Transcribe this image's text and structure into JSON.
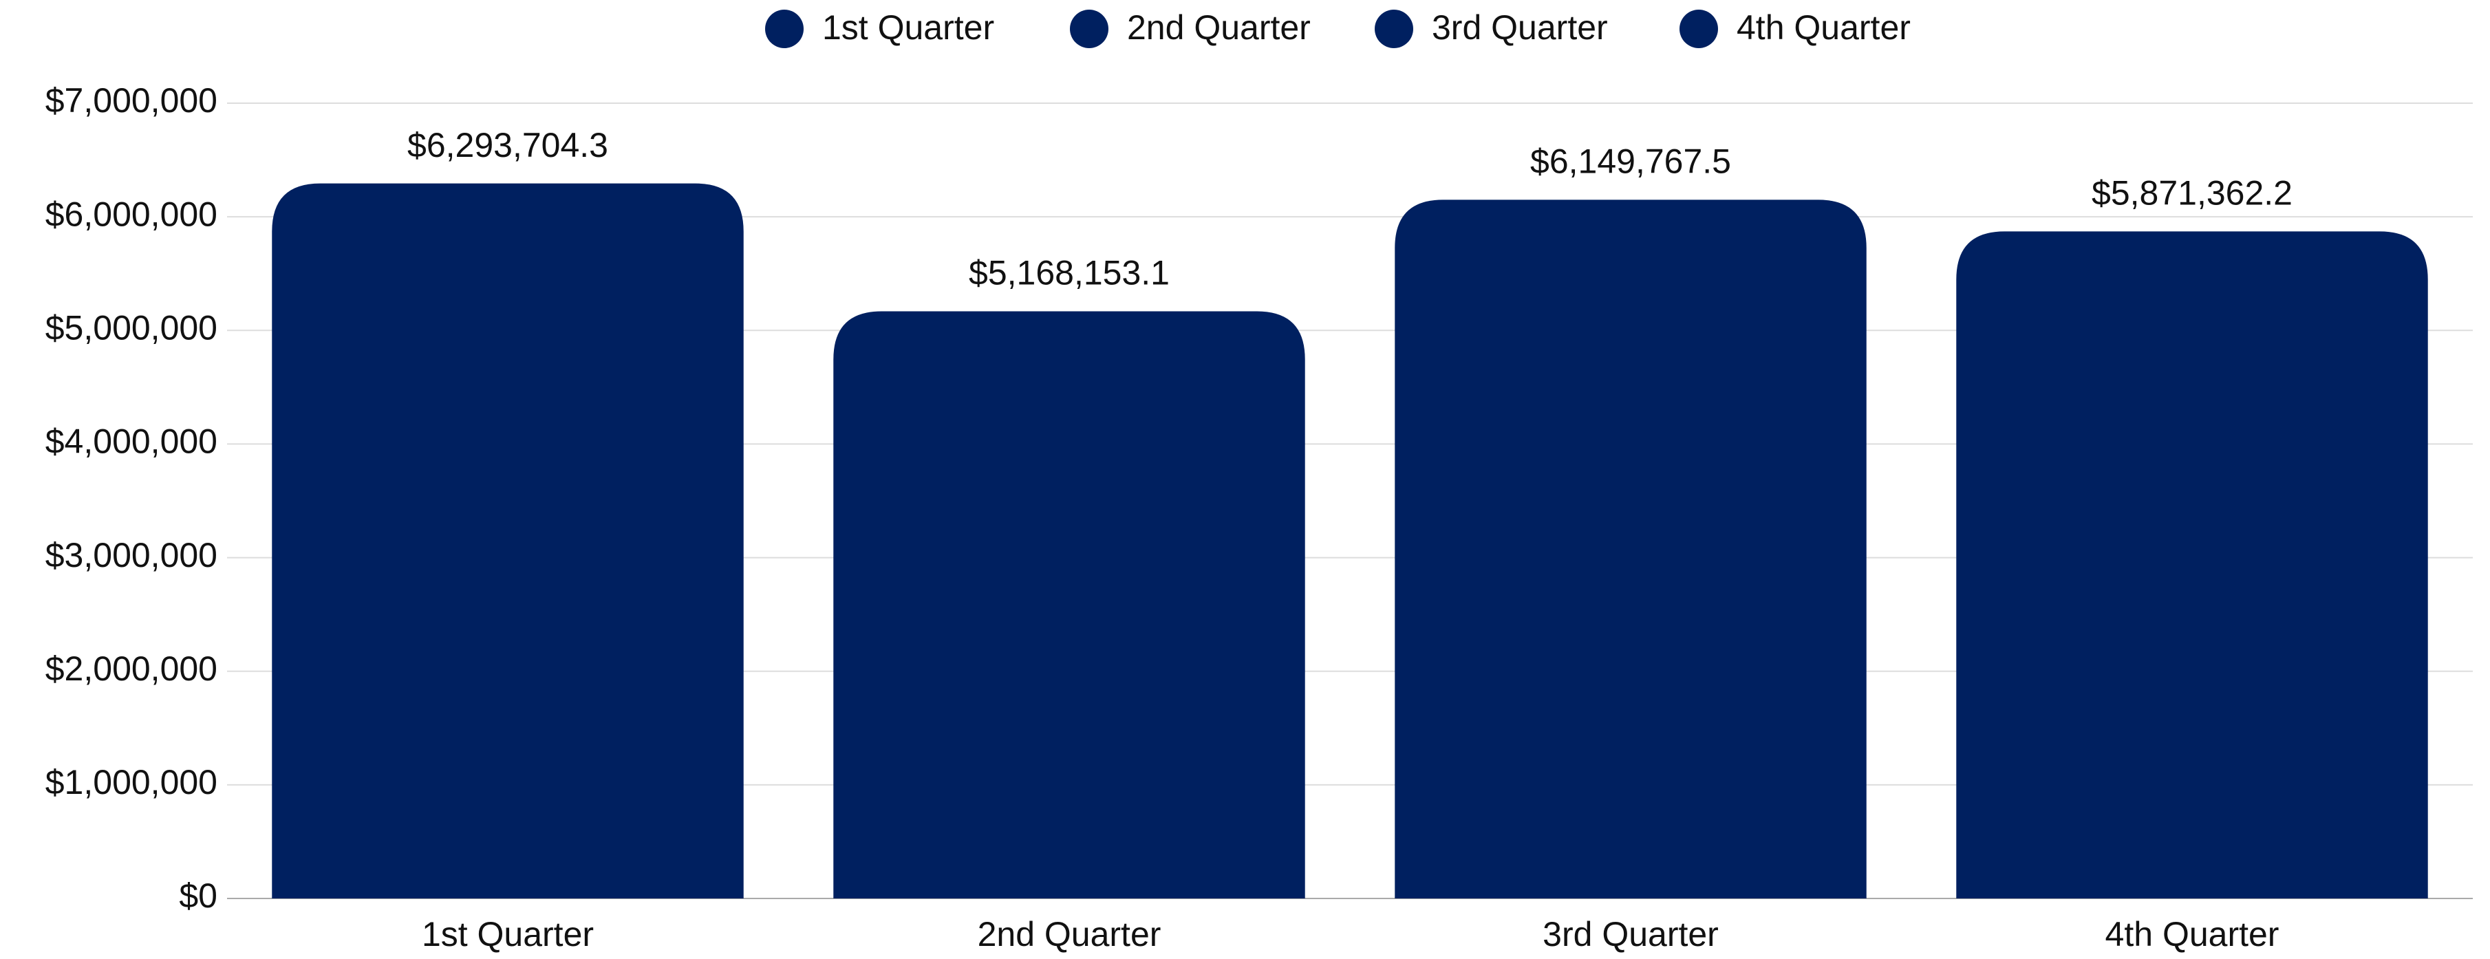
{
  "chart_data": {
    "type": "bar",
    "categories": [
      "1st Quarter",
      "2nd Quarter",
      "3rd Quarter",
      "4th Quarter"
    ],
    "values": [
      6293704.3,
      5168153.1,
      6149767.5,
      5871362.2
    ],
    "value_labels": [
      "$6,293,704.3",
      "$5,168,153.1",
      "$6,149,767.5",
      "$5,871,362.2"
    ],
    "color": "#002060",
    "ylim": [
      0,
      7000000
    ],
    "yticks": [
      {
        "value": 0,
        "label": "$0"
      },
      {
        "value": 1000000,
        "label": "$1,000,000"
      },
      {
        "value": 2000000,
        "label": "$2,000,000"
      },
      {
        "value": 3000000,
        "label": "$3,000,000"
      },
      {
        "value": 4000000,
        "label": "$4,000,000"
      },
      {
        "value": 5000000,
        "label": "$5,000,000"
      },
      {
        "value": 6000000,
        "label": "$6,000,000"
      },
      {
        "value": 7000000,
        "label": "$7,000,000"
      }
    ],
    "grid": true,
    "legend": "top"
  }
}
